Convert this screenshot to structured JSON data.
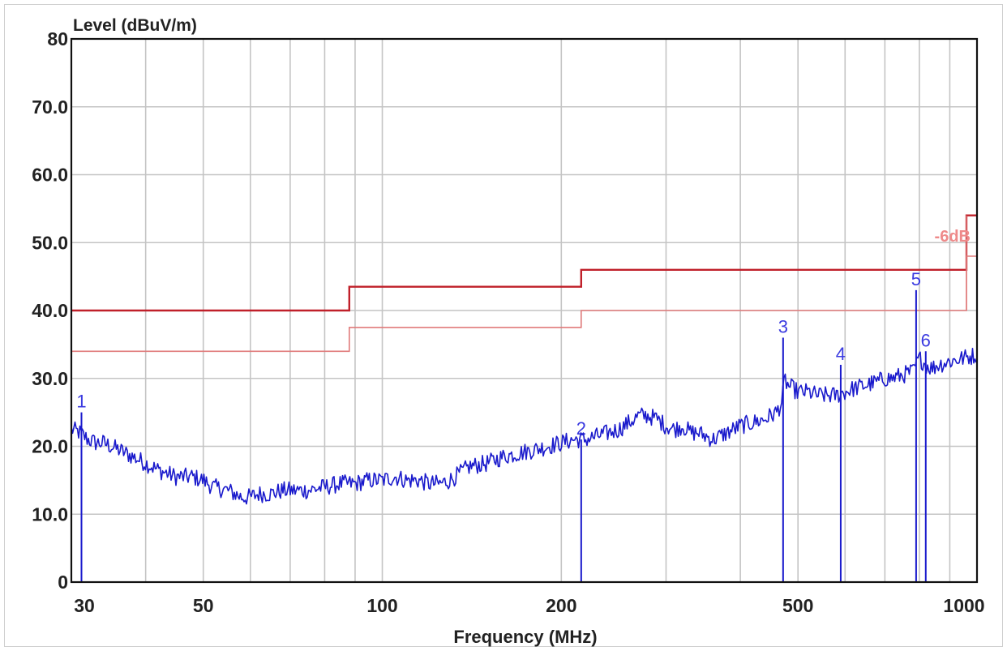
{
  "chart_data": {
    "type": "line",
    "title": "Level (dBuV/m)",
    "xlabel": "Frequency (MHz)",
    "ylabel": "Level (dBuV/m)",
    "x_scale": "log",
    "xlim": [
      30,
      1000
    ],
    "ylim": [
      0,
      80
    ],
    "x_ticks": [
      {
        "value": 30,
        "label": "30"
      },
      {
        "value": 50,
        "label": "50"
      },
      {
        "value": 100,
        "label": "100"
      },
      {
        "value": 200,
        "label": "200"
      },
      {
        "value": 500,
        "label": "500"
      },
      {
        "value": 1000,
        "label": "1000"
      }
    ],
    "x_minor_grid": [
      40,
      60,
      70,
      80,
      90,
      300,
      400,
      600,
      700,
      800,
      900
    ],
    "y_ticks": [
      {
        "value": 0,
        "label": "0"
      },
      {
        "value": 10,
        "label": "10.0"
      },
      {
        "value": 20,
        "label": "20.0"
      },
      {
        "value": 30,
        "label": "30.0"
      },
      {
        "value": 40,
        "label": "40.0"
      },
      {
        "value": 50,
        "label": "50.0"
      },
      {
        "value": 60,
        "label": "60.0"
      },
      {
        "value": 70,
        "label": "70.0"
      },
      {
        "value": 80,
        "label": "80"
      }
    ],
    "grid": true,
    "limit_lines": [
      {
        "role": "limit",
        "color": "#c0202a",
        "points": [
          [
            30,
            40
          ],
          [
            88,
            40
          ],
          [
            88,
            43.5
          ],
          [
            216,
            43.5
          ],
          [
            216,
            46
          ],
          [
            960,
            46
          ],
          [
            960,
            54
          ],
          [
            1000,
            54
          ]
        ]
      },
      {
        "role": "margin",
        "color": "#e07a7a",
        "points": [
          [
            30,
            34
          ],
          [
            88,
            34
          ],
          [
            88,
            37.5
          ],
          [
            216,
            37.5
          ],
          [
            216,
            40
          ],
          [
            960,
            40
          ],
          [
            960,
            48
          ],
          [
            1000,
            48
          ]
        ]
      }
    ],
    "limit_annotation": {
      "text": "-6dB",
      "color": "#ee8a8a",
      "x": 1000,
      "y": 51
    },
    "trace": {
      "color": "#1a1acc",
      "points": [
        [
          30,
          22.5
        ],
        [
          31,
          22
        ],
        [
          32,
          21
        ],
        [
          33,
          20.5
        ],
        [
          34,
          20.5
        ],
        [
          36,
          19.5
        ],
        [
          38,
          18.5
        ],
        [
          40,
          17.5
        ],
        [
          42,
          16.5
        ],
        [
          45,
          15.5
        ],
        [
          48,
          15.5
        ],
        [
          50,
          15
        ],
        [
          52,
          14
        ],
        [
          55,
          13.5
        ],
        [
          58,
          12.5
        ],
        [
          60,
          12.5
        ],
        [
          62,
          13
        ],
        [
          65,
          13
        ],
        [
          68,
          13.5
        ],
        [
          70,
          13.5
        ],
        [
          75,
          13.5
        ],
        [
          80,
          14
        ],
        [
          85,
          14.5
        ],
        [
          90,
          14.5
        ],
        [
          95,
          15
        ],
        [
          100,
          15
        ],
        [
          105,
          15.5
        ],
        [
          110,
          15
        ],
        [
          115,
          15
        ],
        [
          120,
          14.5
        ],
        [
          125,
          14.5
        ],
        [
          130,
          15
        ],
        [
          135,
          16
        ],
        [
          140,
          17
        ],
        [
          150,
          17.5
        ],
        [
          160,
          18.5
        ],
        [
          170,
          19
        ],
        [
          180,
          19.5
        ],
        [
          190,
          20
        ],
        [
          200,
          20.5
        ],
        [
          210,
          21
        ],
        [
          220,
          21
        ],
        [
          230,
          21.5
        ],
        [
          240,
          22
        ],
        [
          250,
          22.5
        ],
        [
          260,
          23.5
        ],
        [
          270,
          24.5
        ],
        [
          280,
          24.5
        ],
        [
          290,
          24
        ],
        [
          300,
          23
        ],
        [
          310,
          22.5
        ],
        [
          320,
          23
        ],
        [
          330,
          22
        ],
        [
          340,
          22
        ],
        [
          350,
          21.5
        ],
        [
          360,
          21
        ],
        [
          370,
          21.5
        ],
        [
          380,
          22
        ],
        [
          390,
          22.5
        ],
        [
          400,
          23
        ],
        [
          420,
          23.5
        ],
        [
          440,
          24
        ],
        [
          460,
          25
        ],
        [
          470,
          26.5
        ],
        [
          475,
          30
        ],
        [
          480,
          29
        ],
        [
          500,
          28
        ],
        [
          520,
          28
        ],
        [
          540,
          27.5
        ],
        [
          560,
          27.5
        ],
        [
          580,
          27.5
        ],
        [
          600,
          28
        ],
        [
          620,
          28.5
        ],
        [
          650,
          29
        ],
        [
          680,
          29.5
        ],
        [
          700,
          30
        ],
        [
          720,
          30
        ],
        [
          750,
          30.5
        ],
        [
          780,
          31
        ],
        [
          790,
          32
        ],
        [
          800,
          33
        ],
        [
          820,
          32
        ],
        [
          840,
          31.5
        ],
        [
          860,
          32
        ],
        [
          900,
          32.5
        ],
        [
          950,
          33
        ],
        [
          1000,
          33.5
        ]
      ]
    },
    "markers": [
      {
        "label": "1",
        "freq": 31.2,
        "level": 25
      },
      {
        "label": "2",
        "freq": 216,
        "level": 21
      },
      {
        "label": "3",
        "freq": 472,
        "level": 36
      },
      {
        "label": "4",
        "freq": 590,
        "level": 32
      },
      {
        "label": "5",
        "freq": 790,
        "level": 43
      },
      {
        "label": "6",
        "freq": 820,
        "level": 34
      }
    ]
  }
}
